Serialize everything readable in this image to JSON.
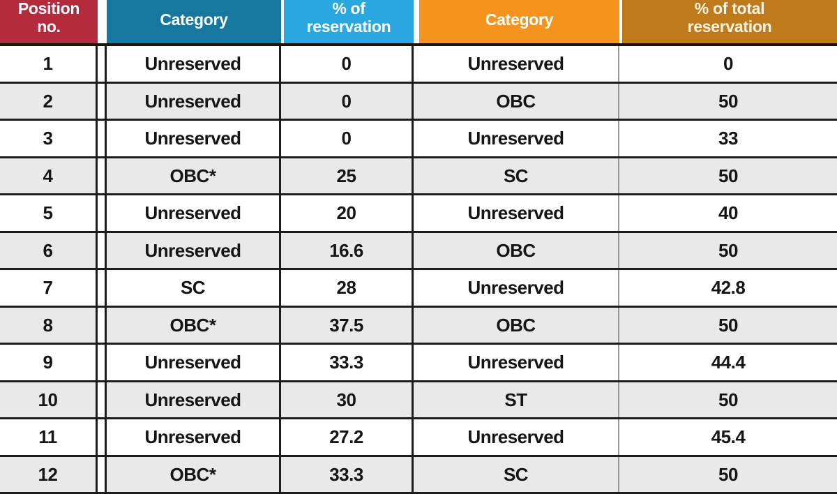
{
  "colors": {
    "header_position_bg": "#b42b3d",
    "header_category13_bg": "#17789f",
    "header_pct13_bg": "#29a8df",
    "header_category200_bg": "#f4941e",
    "header_pct200_bg": "#bf7b1b",
    "header_text": "#ffffff",
    "row_alt_bg": "#e9e9e9",
    "body_text": "#151515",
    "border": "#1c1c1c",
    "thin_divider": "#9b9b9b"
  },
  "table": {
    "columns": [
      {
        "id": "position",
        "label": "Position no.",
        "lines": [
          "Position",
          "no."
        ]
      },
      {
        "id": "category_13pt",
        "label": "Category"
      },
      {
        "id": "pct_reservation",
        "label": "% of reservation",
        "lines": [
          "% of",
          "reservation"
        ]
      },
      {
        "id": "category_200pt",
        "label": "Category"
      },
      {
        "id": "pct_total_reservation",
        "label": "% of total reservation",
        "lines": [
          "% of total",
          "reservation"
        ]
      }
    ],
    "rows": [
      [
        "1",
        "Unreserved",
        "0",
        "Unreserved",
        "0"
      ],
      [
        "2",
        "Unreserved",
        "0",
        "OBC",
        "50"
      ],
      [
        "3",
        "Unreserved",
        "0",
        "Unreserved",
        "33"
      ],
      [
        "4",
        "OBC*",
        "25",
        "SC",
        "50"
      ],
      [
        "5",
        "Unreserved",
        "20",
        "Unreserved",
        "40"
      ],
      [
        "6",
        "Unreserved",
        "16.6",
        "OBC",
        "50"
      ],
      [
        "7",
        "SC",
        "28",
        "Unreserved",
        "42.8"
      ],
      [
        "8",
        "OBC*",
        "37.5",
        "OBC",
        "50"
      ],
      [
        "9",
        "Unreserved",
        "33.3",
        "Unreserved",
        "44.4"
      ],
      [
        "10",
        "Unreserved",
        "30",
        "ST",
        "50"
      ],
      [
        "11",
        "Unreserved",
        "27.2",
        "Unreserved",
        "45.4"
      ],
      [
        "12",
        "OBC*",
        "33.3",
        "SC",
        "50"
      ]
    ]
  },
  "chart_data": {
    "type": "table",
    "title": "",
    "columns": [
      "Position no.",
      "Category",
      "% of reservation",
      "Category",
      "% of total reservation"
    ],
    "rows": [
      [
        "1",
        "Unreserved",
        "0",
        "Unreserved",
        "0"
      ],
      [
        "2",
        "Unreserved",
        "0",
        "OBC",
        "50"
      ],
      [
        "3",
        "Unreserved",
        "0",
        "Unreserved",
        "33"
      ],
      [
        "4",
        "OBC*",
        "25",
        "SC",
        "50"
      ],
      [
        "5",
        "Unreserved",
        "20",
        "Unreserved",
        "40"
      ],
      [
        "6",
        "Unreserved",
        "16.6",
        "OBC",
        "50"
      ],
      [
        "7",
        "SC",
        "28",
        "Unreserved",
        "42.8"
      ],
      [
        "8",
        "OBC*",
        "37.5",
        "OBC",
        "50"
      ],
      [
        "9",
        "Unreserved",
        "33.3",
        "Unreserved",
        "44.4"
      ],
      [
        "10",
        "Unreserved",
        "30",
        "ST",
        "50"
      ],
      [
        "11",
        "Unreserved",
        "27.2",
        "Unreserved",
        "45.4"
      ],
      [
        "12",
        "OBC*",
        "33.3",
        "SC",
        "50"
      ]
    ]
  }
}
